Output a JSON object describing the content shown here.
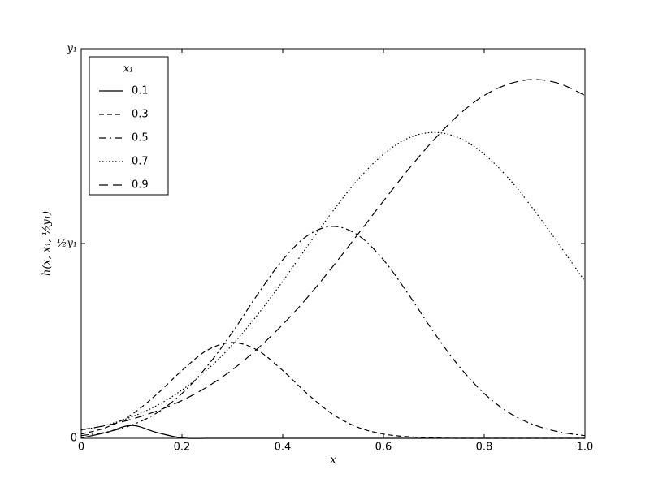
{
  "chart_data": {
    "type": "line",
    "xlabel": "x",
    "ylabel": "h(x, x₁, ½y₁)",
    "legend_title": "x₁",
    "legend": "upper left",
    "x": [
      0,
      0.05,
      0.1,
      0.15,
      0.2,
      0.25,
      0.3,
      0.35,
      0.4,
      0.45,
      0.5,
      0.55,
      0.6,
      0.65,
      0.7,
      0.75,
      0.8,
      0.85,
      0.9,
      0.95,
      1
    ],
    "series": [
      {
        "name": "0.1",
        "color": "#000000",
        "linestyle": "solid",
        "values": [
          0.001,
          0.015,
          0.033,
          0.015,
          0.001,
          0,
          0,
          0,
          0,
          0,
          0,
          0,
          0,
          0,
          0,
          0,
          0,
          0,
          0,
          0,
          0
        ]
      },
      {
        "name": "0.3",
        "color": "#000000",
        "linestyle": "dashed",
        "values": [
          0.011,
          0.028,
          0.061,
          0.113,
          0.174,
          0.226,
          0.246,
          0.226,
          0.174,
          0.113,
          0.061,
          0.028,
          0.011,
          0.004,
          0.001,
          0,
          0,
          0,
          0,
          0,
          0
        ]
      },
      {
        "name": "0.5",
        "color": "#000000",
        "linestyle": "dashdot",
        "values": [
          0.007,
          0.016,
          0.034,
          0.065,
          0.115,
          0.185,
          0.272,
          0.369,
          0.458,
          0.521,
          0.544,
          0.521,
          0.458,
          0.369,
          0.272,
          0.185,
          0.115,
          0.065,
          0.034,
          0.016,
          0.007
        ]
      },
      {
        "name": "0.7",
        "color": "#000000",
        "linestyle": "dotted",
        "values": [
          0.021,
          0.034,
          0.055,
          0.084,
          0.124,
          0.176,
          0.24,
          0.317,
          0.403,
          0.495,
          0.584,
          0.665,
          0.729,
          0.771,
          0.785,
          0.771,
          0.729,
          0.665,
          0.584,
          0.495,
          0.403
        ]
      },
      {
        "name": "0.9",
        "color": "#000000",
        "linestyle": "longdash",
        "values": [
          0.022,
          0.033,
          0.049,
          0.07,
          0.097,
          0.132,
          0.176,
          0.23,
          0.292,
          0.363,
          0.442,
          0.525,
          0.609,
          0.691,
          0.766,
          0.831,
          0.88,
          0.91,
          0.921,
          0.91,
          0.88
        ]
      }
    ],
    "xlim": [
      0,
      1
    ],
    "xticks": [
      0,
      0.2,
      0.4,
      0.6,
      0.8,
      {
        "value": 1,
        "label": "1.0"
      }
    ],
    "ylim": [
      0,
      1
    ],
    "yticks": [
      0,
      {
        "value": 0.5,
        "label": "½y₁"
      },
      {
        "value": 1,
        "label": "y₁"
      }
    ],
    "grid": false
  }
}
